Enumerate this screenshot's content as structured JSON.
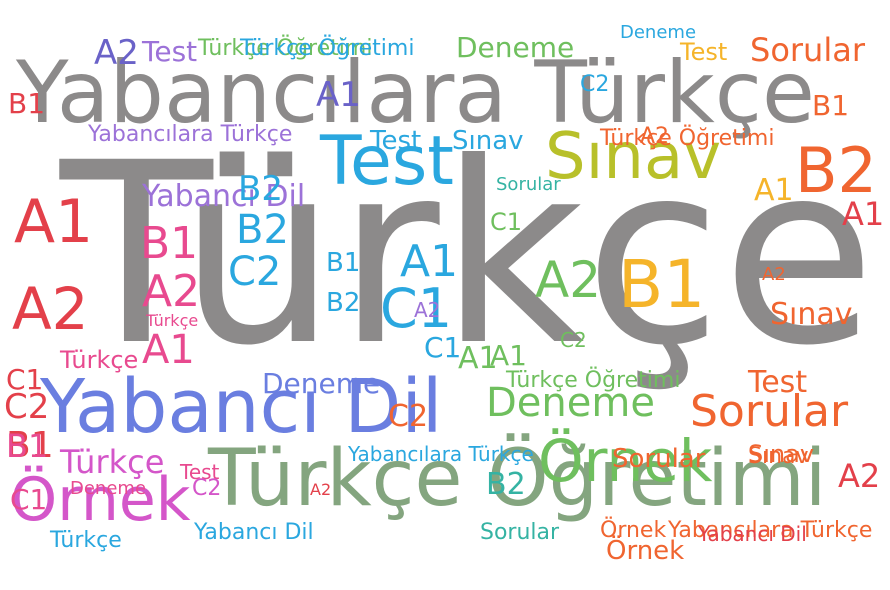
{
  "palette": {
    "gray": "#8c8a8a",
    "sky": "#2aa7df",
    "lime": "#b8c02a",
    "orange": "#f06530",
    "yellow": "#f5b42a",
    "pink": "#e84a8f",
    "purple": "#9c72d8",
    "green": "#6fbf5e",
    "sage": "#84a57f",
    "teal": "#35b3a3",
    "red": "#e3404a",
    "blue": "#6a7ee0",
    "indigo": "#6a62c8",
    "magenta": "#d456c9"
  },
  "words": [
    {
      "text": "Türkçe",
      "color": "gray"
    },
    {
      "text": "Yabancılara Türkçe",
      "color": "gray"
    },
    {
      "text": "Türkçe Öğretimi",
      "color": "sage"
    },
    {
      "text": "Yabancı Dil",
      "color": "blue"
    },
    {
      "text": "Test",
      "color": "sky"
    },
    {
      "text": "Sınav",
      "color": "lime"
    },
    {
      "text": "Örnek",
      "color": "magenta"
    },
    {
      "text": "Örnek",
      "color": "green"
    },
    {
      "text": "B2",
      "color": "orange"
    },
    {
      "text": "B1",
      "color": "yellow"
    },
    {
      "text": "A1",
      "color": "red"
    },
    {
      "text": "A2",
      "color": "red"
    },
    {
      "text": "Sorular",
      "color": "orange"
    },
    {
      "text": "Deneme",
      "color": "green"
    },
    {
      "text": "C1",
      "color": "sky"
    },
    {
      "text": "A2",
      "color": "green"
    },
    {
      "text": "A1",
      "color": "sky"
    },
    {
      "text": "B1",
      "color": "pink"
    },
    {
      "text": "A2",
      "color": "pink"
    },
    {
      "text": "A1",
      "color": "pink"
    },
    {
      "text": "B2",
      "color": "sky"
    },
    {
      "text": "C2",
      "color": "sky"
    },
    {
      "text": "Yabancılara Türkçe",
      "color": "purple"
    },
    {
      "text": "Yabancı Dil",
      "color": "purple"
    },
    {
      "text": "Sorular",
      "color": "orange"
    },
    {
      "text": "Sınav",
      "color": "orange"
    },
    {
      "text": "Test",
      "color": "orange"
    },
    {
      "text": "C2",
      "color": "red"
    },
    {
      "text": "A1",
      "color": "red"
    },
    {
      "text": "B1",
      "color": "red"
    },
    {
      "text": "A2",
      "color": "red"
    },
    {
      "text": "Türkçe",
      "color": "magenta"
    },
    {
      "text": "Deneme",
      "color": "blue"
    },
    {
      "text": "Deneme",
      "color": "green"
    },
    {
      "text": "Test",
      "color": "purple"
    },
    {
      "text": "Test",
      "color": "yellow"
    },
    {
      "text": "Sorular",
      "color": "orange"
    },
    {
      "text": "Sınav",
      "color": "sky"
    },
    {
      "text": "Test",
      "color": "sky"
    },
    {
      "text": "Sınav",
      "color": "orange"
    },
    {
      "text": "Sorular",
      "color": "teal"
    },
    {
      "text": "Sorular",
      "color": "teal"
    },
    {
      "text": "Türkçe",
      "color": "sky"
    },
    {
      "text": "Yabancı Dil",
      "color": "sky"
    },
    {
      "text": "Türkçe Öğretimi",
      "color": "green"
    },
    {
      "text": "Türkçe Öğretimi",
      "color": "sky"
    },
    {
      "text": "Türkçe Öğretimi",
      "color": "orange"
    },
    {
      "text": "Türkçe Öğretimi",
      "color": "green"
    },
    {
      "text": "Yabancılara Türkçe",
      "color": "orange"
    },
    {
      "text": "Yabancılara Türkçe",
      "color": "sky"
    },
    {
      "text": "Örnek",
      "color": "orange"
    },
    {
      "text": "A1",
      "color": "yellow"
    },
    {
      "text": "A1",
      "color": "green"
    },
    {
      "text": "A2",
      "color": "orange"
    },
    {
      "text": "B1",
      "color": "orange"
    },
    {
      "text": "C1",
      "color": "red"
    },
    {
      "text": "C2",
      "color": "orange"
    },
    {
      "text": "A2",
      "color": "orange"
    },
    {
      "text": "B1",
      "color": "red"
    },
    {
      "text": "B2",
      "color": "sky"
    },
    {
      "text": "C1",
      "color": "green"
    },
    {
      "text": "C2",
      "color": "sky"
    },
    {
      "text": "B1",
      "color": "sky"
    },
    {
      "text": "B2",
      "color": "sky"
    },
    {
      "text": "A2",
      "color": "purple"
    },
    {
      "text": "C1",
      "color": "sky"
    },
    {
      "text": "C2",
      "color": "green"
    },
    {
      "text": "A1",
      "color": "green"
    },
    {
      "text": "B2",
      "color": "teal"
    },
    {
      "text": "A2",
      "color": "red"
    },
    {
      "text": "Deneme",
      "color": "pink"
    },
    {
      "text": "Test",
      "color": "pink"
    },
    {
      "text": "Türkçe",
      "color": "pink"
    },
    {
      "text": "Yabancı Dil",
      "color": "red"
    },
    {
      "text": "Örnek",
      "color": "orange"
    },
    {
      "text": "Sınav",
      "color": "orange"
    },
    {
      "text": "Deneme",
      "color": "sky"
    },
    {
      "text": "Türkçe",
      "color": "pink"
    },
    {
      "text": "C1",
      "color": "pink"
    },
    {
      "text": "C2",
      "color": "magenta"
    },
    {
      "text": "B1",
      "color": "pink"
    },
    {
      "text": "A1",
      "color": "indigo"
    },
    {
      "text": "A2",
      "color": "indigo"
    }
  ]
}
